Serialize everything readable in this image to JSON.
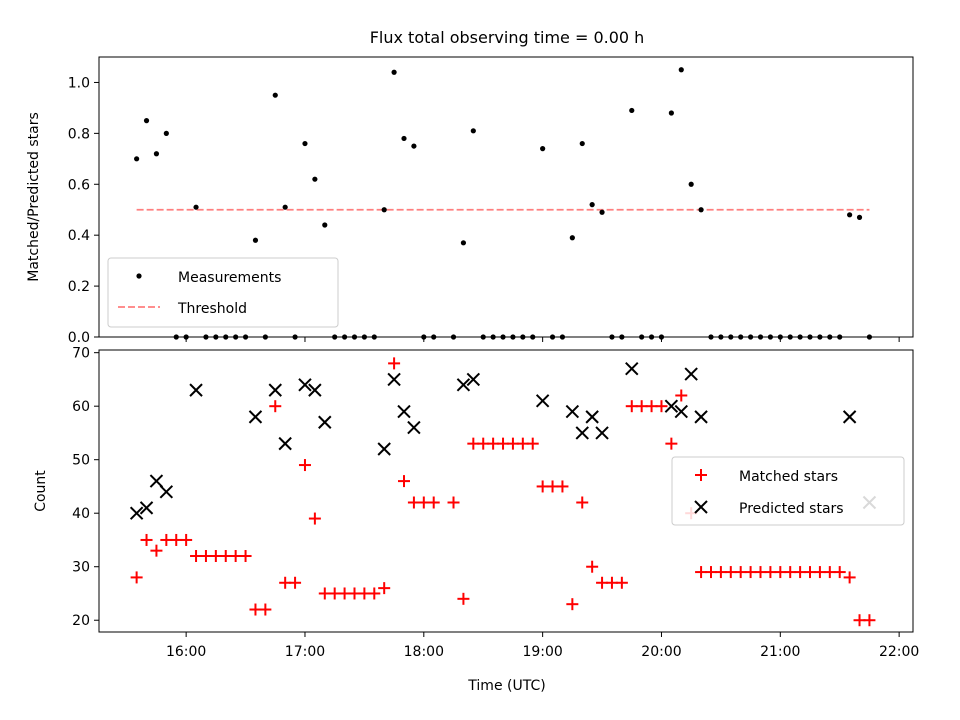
{
  "chart_data": [
    {
      "type": "scatter",
      "title": "Flux total observing time = 0.00 h",
      "xlabel": "",
      "ylabel": "Matched/Predicted stars",
      "xlim": [
        "15:16",
        "22:07"
      ],
      "ylim": [
        0,
        1.1
      ],
      "yticks": [
        0.0,
        0.2,
        0.4,
        0.6,
        0.8,
        1.0
      ],
      "ytick_labels": [
        "0.0",
        "0.2",
        "0.4",
        "0.6",
        "0.8",
        "1.0"
      ],
      "legend": {
        "placement": "lower-left",
        "entries": [
          "Measurements",
          "Threshold"
        ]
      },
      "series": [
        {
          "name": "Measurements",
          "marker": "dot",
          "color": "#000000",
          "points": [
            [
              "15:35",
              0.7
            ],
            [
              "15:40",
              0.85
            ],
            [
              "15:45",
              0.72
            ],
            [
              "15:50",
              0.8
            ],
            [
              "15:55",
              0.0
            ],
            [
              "16:00",
              0.0
            ],
            [
              "16:05",
              0.51
            ],
            [
              "16:10",
              0.0
            ],
            [
              "16:15",
              0.0
            ],
            [
              "16:20",
              0.0
            ],
            [
              "16:25",
              0.0
            ],
            [
              "16:30",
              0.0
            ],
            [
              "16:35",
              0.38
            ],
            [
              "16:40",
              0.0
            ],
            [
              "16:45",
              0.95
            ],
            [
              "16:50",
              0.51
            ],
            [
              "16:55",
              0.0
            ],
            [
              "17:00",
              0.76
            ],
            [
              "17:05",
              0.62
            ],
            [
              "17:10",
              0.44
            ],
            [
              "17:15",
              0.0
            ],
            [
              "17:20",
              0.0
            ],
            [
              "17:25",
              0.0
            ],
            [
              "17:30",
              0.0
            ],
            [
              "17:35",
              0.0
            ],
            [
              "17:40",
              0.5
            ],
            [
              "17:45",
              1.04
            ],
            [
              "17:50",
              0.78
            ],
            [
              "17:55",
              0.75
            ],
            [
              "18:00",
              0.0
            ],
            [
              "18:05",
              0.0
            ],
            [
              "18:15",
              0.0
            ],
            [
              "18:20",
              0.37
            ],
            [
              "18:25",
              0.81
            ],
            [
              "18:30",
              0.0
            ],
            [
              "18:35",
              0.0
            ],
            [
              "18:40",
              0.0
            ],
            [
              "18:45",
              0.0
            ],
            [
              "18:50",
              0.0
            ],
            [
              "18:55",
              0.0
            ],
            [
              "19:00",
              0.74
            ],
            [
              "19:05",
              0.0
            ],
            [
              "19:10",
              0.0
            ],
            [
              "19:15",
              0.39
            ],
            [
              "19:20",
              0.76
            ],
            [
              "19:25",
              0.52
            ],
            [
              "19:30",
              0.49
            ],
            [
              "19:35",
              0.0
            ],
            [
              "19:40",
              0.0
            ],
            [
              "19:45",
              0.89
            ],
            [
              "19:50",
              0.0
            ],
            [
              "19:55",
              0.0
            ],
            [
              "20:00",
              0.0
            ],
            [
              "20:05",
              0.88
            ],
            [
              "20:10",
              1.05
            ],
            [
              "20:15",
              0.6
            ],
            [
              "20:20",
              0.5
            ],
            [
              "20:25",
              0.0
            ],
            [
              "20:30",
              0.0
            ],
            [
              "20:35",
              0.0
            ],
            [
              "20:40",
              0.0
            ],
            [
              "20:45",
              0.0
            ],
            [
              "20:50",
              0.0
            ],
            [
              "20:55",
              0.0
            ],
            [
              "21:00",
              0.0
            ],
            [
              "21:05",
              0.0
            ],
            [
              "21:10",
              0.0
            ],
            [
              "21:15",
              0.0
            ],
            [
              "21:20",
              0.0
            ],
            [
              "21:25",
              0.0
            ],
            [
              "21:30",
              0.0
            ],
            [
              "21:35",
              0.48
            ],
            [
              "21:40",
              0.47
            ],
            [
              "21:45",
              0.0
            ]
          ]
        },
        {
          "name": "Threshold",
          "style": "dashed",
          "color": "#ff7f7f",
          "points": [
            [
              "15:35",
              0.5
            ],
            [
              "21:45",
              0.5
            ]
          ]
        }
      ]
    },
    {
      "type": "scatter",
      "title": "",
      "xlabel": "Time (UTC)",
      "ylabel": "Count",
      "xlim": [
        "15:16",
        "22:07"
      ],
      "ylim": [
        17.8,
        70.5
      ],
      "yticks": [
        20,
        30,
        40,
        50,
        60,
        70
      ],
      "ytick_labels": [
        "20",
        "30",
        "40",
        "50",
        "60",
        "70"
      ],
      "xticks": [
        "16:00",
        "17:00",
        "18:00",
        "19:00",
        "20:00",
        "21:00",
        "22:00"
      ],
      "legend": {
        "placement": "center-right",
        "entries": [
          "Matched stars",
          "Predicted stars"
        ]
      },
      "series": [
        {
          "name": "Matched stars",
          "marker": "plus",
          "color": "#ff0000",
          "points": [
            [
              "15:35",
              28
            ],
            [
              "15:40",
              35
            ],
            [
              "15:45",
              33
            ],
            [
              "15:50",
              35
            ],
            [
              "15:55",
              35
            ],
            [
              "16:00",
              35
            ],
            [
              "16:05",
              32
            ],
            [
              "16:10",
              32
            ],
            [
              "16:15",
              32
            ],
            [
              "16:20",
              32
            ],
            [
              "16:25",
              32
            ],
            [
              "16:30",
              32
            ],
            [
              "16:35",
              22
            ],
            [
              "16:40",
              22
            ],
            [
              "16:45",
              60
            ],
            [
              "16:50",
              27
            ],
            [
              "16:55",
              27
            ],
            [
              "17:00",
              49
            ],
            [
              "17:05",
              39
            ],
            [
              "17:10",
              25
            ],
            [
              "17:15",
              25
            ],
            [
              "17:20",
              25
            ],
            [
              "17:25",
              25
            ],
            [
              "17:30",
              25
            ],
            [
              "17:35",
              25
            ],
            [
              "17:40",
              26
            ],
            [
              "17:45",
              68
            ],
            [
              "17:50",
              46
            ],
            [
              "17:55",
              42
            ],
            [
              "18:00",
              42
            ],
            [
              "18:05",
              42
            ],
            [
              "18:15",
              42
            ],
            [
              "18:20",
              24
            ],
            [
              "18:25",
              53
            ],
            [
              "18:30",
              53
            ],
            [
              "18:35",
              53
            ],
            [
              "18:40",
              53
            ],
            [
              "18:45",
              53
            ],
            [
              "18:50",
              53
            ],
            [
              "18:55",
              53
            ],
            [
              "19:00",
              45
            ],
            [
              "19:05",
              45
            ],
            [
              "19:10",
              45
            ],
            [
              "19:15",
              23
            ],
            [
              "19:20",
              42
            ],
            [
              "19:25",
              30
            ],
            [
              "19:30",
              27
            ],
            [
              "19:35",
              27
            ],
            [
              "19:40",
              27
            ],
            [
              "19:45",
              60
            ],
            [
              "19:50",
              60
            ],
            [
              "19:55",
              60
            ],
            [
              "20:00",
              60
            ],
            [
              "20:05",
              53
            ],
            [
              "20:10",
              62
            ],
            [
              "20:15",
              40
            ],
            [
              "20:20",
              29
            ],
            [
              "20:25",
              29
            ],
            [
              "20:30",
              29
            ],
            [
              "20:35",
              29
            ],
            [
              "20:40",
              29
            ],
            [
              "20:45",
              29
            ],
            [
              "20:50",
              29
            ],
            [
              "20:55",
              29
            ],
            [
              "21:00",
              29
            ],
            [
              "21:05",
              29
            ],
            [
              "21:10",
              29
            ],
            [
              "21:15",
              29
            ],
            [
              "21:20",
              29
            ],
            [
              "21:25",
              29
            ],
            [
              "21:30",
              29
            ],
            [
              "21:35",
              28
            ],
            [
              "21:40",
              20
            ],
            [
              "21:45",
              20
            ]
          ]
        },
        {
          "name": "Predicted stars",
          "marker": "x",
          "color": "#000000",
          "points": [
            [
              "15:35",
              40
            ],
            [
              "15:40",
              41
            ],
            [
              "15:45",
              46
            ],
            [
              "15:50",
              44
            ],
            [
              "16:05",
              63
            ],
            [
              "16:35",
              58
            ],
            [
              "16:45",
              63
            ],
            [
              "16:50",
              53
            ],
            [
              "17:00",
              64
            ],
            [
              "17:05",
              63
            ],
            [
              "17:10",
              57
            ],
            [
              "17:40",
              52
            ],
            [
              "17:45",
              65
            ],
            [
              "17:50",
              59
            ],
            [
              "17:55",
              56
            ],
            [
              "18:20",
              64
            ],
            [
              "18:25",
              65
            ],
            [
              "19:00",
              61
            ],
            [
              "19:15",
              59
            ],
            [
              "19:20",
              55
            ],
            [
              "19:25",
              58
            ],
            [
              "19:30",
              55
            ],
            [
              "19:45",
              67
            ],
            [
              "20:05",
              60
            ],
            [
              "20:10",
              59
            ],
            [
              "20:15",
              66
            ],
            [
              "20:20",
              58
            ],
            [
              "21:35",
              58
            ],
            [
              "21:45",
              42
            ]
          ]
        }
      ]
    }
  ]
}
